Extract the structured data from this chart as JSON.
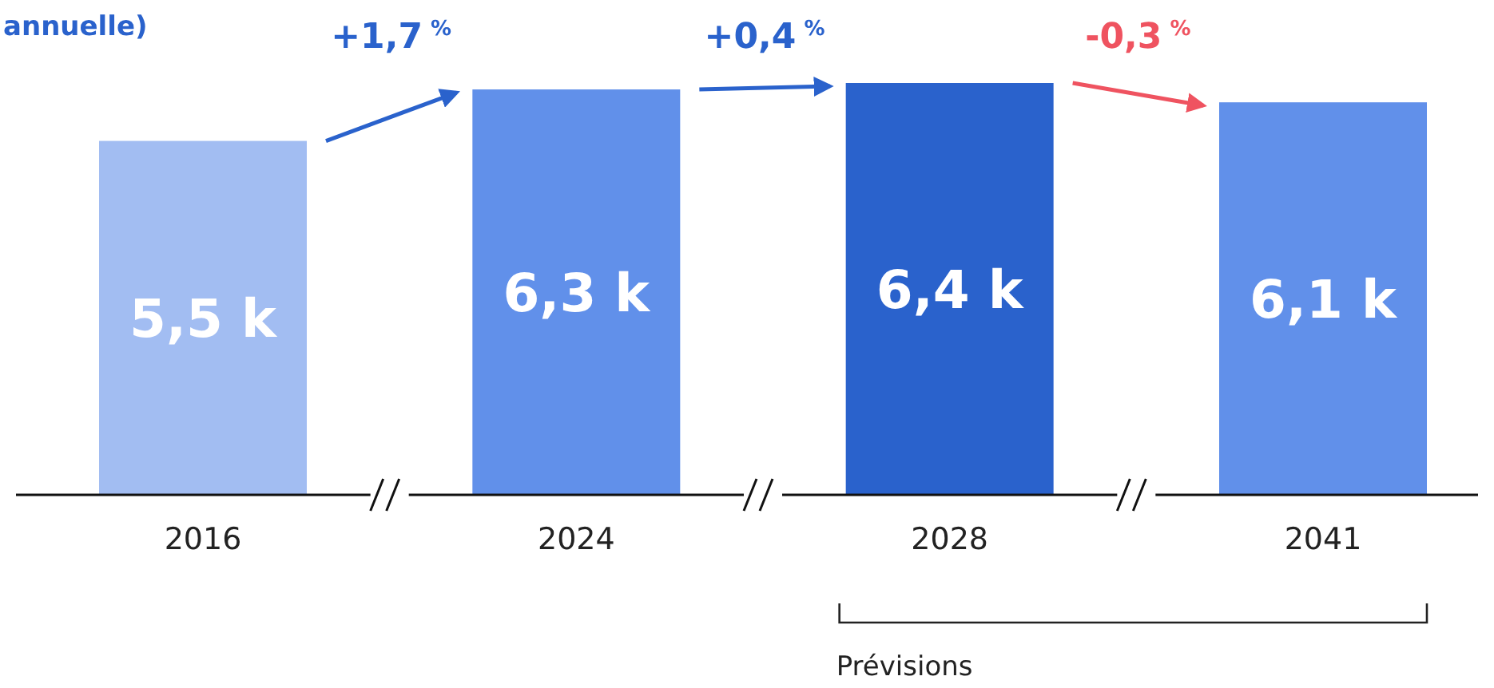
{
  "chart_data": {
    "type": "bar",
    "title": "annuelle)",
    "categories": [
      "2016",
      "2024",
      "2028",
      "2041"
    ],
    "values": [
      5.5,
      6.3,
      6.4,
      6.1
    ],
    "colors": [
      "#a2bdf2",
      "#6190ea",
      "#2a62cc",
      "#6190ea"
    ],
    "value_labels": [
      "5,5 k",
      "6,3 k",
      "6,4 k",
      "6,1 k"
    ],
    "annotations": [
      "+1,7 $^{%}$",
      "+0,4 $^{%}$",
      "-0,3 $^{%}$",
      "Prévisions"
    ]
  }
}
